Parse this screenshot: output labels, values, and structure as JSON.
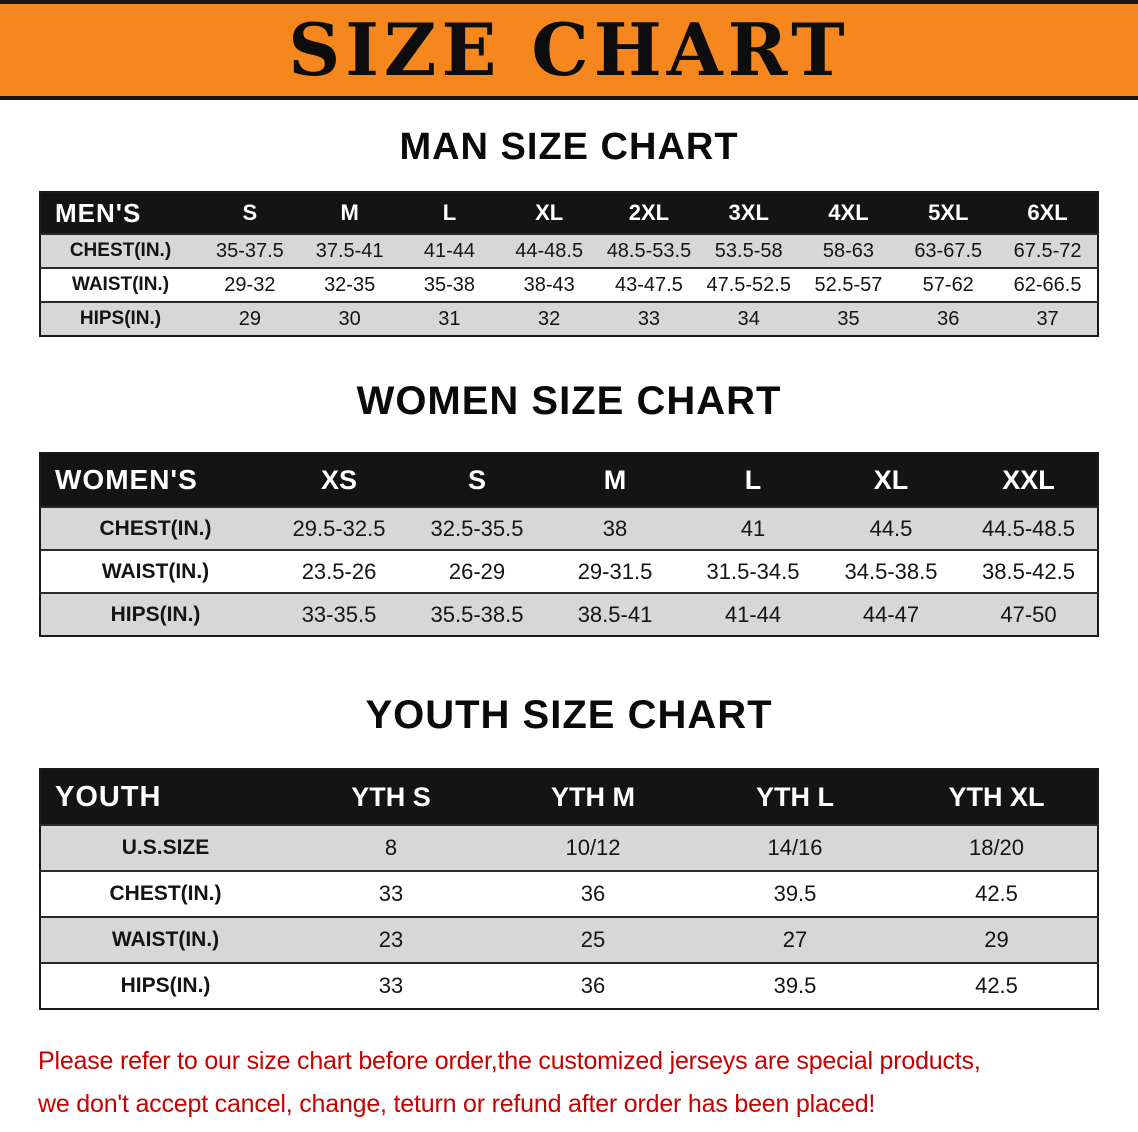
{
  "banner": {
    "title": "SIZE CHART"
  },
  "colors": {
    "banner_bg": "#f6871f",
    "table_header_bg": "#141414",
    "row_alt_gray": "#d7d7d7",
    "notice_red": "#c80000"
  },
  "sections": [
    {
      "heading": "MAN SIZE CHART",
      "corner": "MEN'S",
      "columns": [
        "S",
        "M",
        "L",
        "XL",
        "2XL",
        "3XL",
        "4XL",
        "5XL",
        "6XL"
      ],
      "rows": [
        {
          "label": "CHEST(IN.)",
          "values": [
            "35-37.5",
            "37.5-41",
            "41-44",
            "44-48.5",
            "48.5-53.5",
            "53.5-58",
            "58-63",
            "63-67.5",
            "67.5-72"
          ]
        },
        {
          "label": "WAIST(IN.)",
          "values": [
            "29-32",
            "32-35",
            "35-38",
            "38-43",
            "43-47.5",
            "47.5-52.5",
            "52.5-57",
            "57-62",
            "62-66.5"
          ]
        },
        {
          "label": "HIPS(IN.)",
          "values": [
            "29",
            "30",
            "31",
            "32",
            "33",
            "34",
            "35",
            "36",
            "37"
          ]
        }
      ]
    },
    {
      "heading": "WOMEN SIZE CHART",
      "corner": "WOMEN'S",
      "columns": [
        "XS",
        "S",
        "M",
        "L",
        "XL",
        "XXL"
      ],
      "rows": [
        {
          "label": "CHEST(IN.)",
          "values": [
            "29.5-32.5",
            "32.5-35.5",
            "38",
            "41",
            "44.5",
            "44.5-48.5"
          ]
        },
        {
          "label": "WAIST(IN.)",
          "values": [
            "23.5-26",
            "26-29",
            "29-31.5",
            "31.5-34.5",
            "34.5-38.5",
            "38.5-42.5"
          ]
        },
        {
          "label": "HIPS(IN.)",
          "values": [
            "33-35.5",
            "35.5-38.5",
            "38.5-41",
            "41-44",
            "44-47",
            "47-50"
          ]
        }
      ]
    },
    {
      "heading": "YOUTH SIZE CHART",
      "corner": "YOUTH",
      "columns": [
        "YTH S",
        "YTH M",
        "YTH L",
        "YTH XL"
      ],
      "rows": [
        {
          "label": "U.S.SIZE",
          "values": [
            "8",
            "10/12",
            "14/16",
            "18/20"
          ]
        },
        {
          "label": "CHEST(IN.)",
          "values": [
            "33",
            "36",
            "39.5",
            "42.5"
          ]
        },
        {
          "label": "WAIST(IN.)",
          "values": [
            "23",
            "25",
            "27",
            "29"
          ]
        },
        {
          "label": "HIPS(IN.)",
          "values": [
            "33",
            "36",
            "39.5",
            "42.5"
          ]
        }
      ]
    }
  ],
  "footer": {
    "line1": "Please refer to our size chart before order,the customized jerseys are special products,",
    "line2": "we don't accept cancel, change, teturn or refund after order has been placed!"
  }
}
